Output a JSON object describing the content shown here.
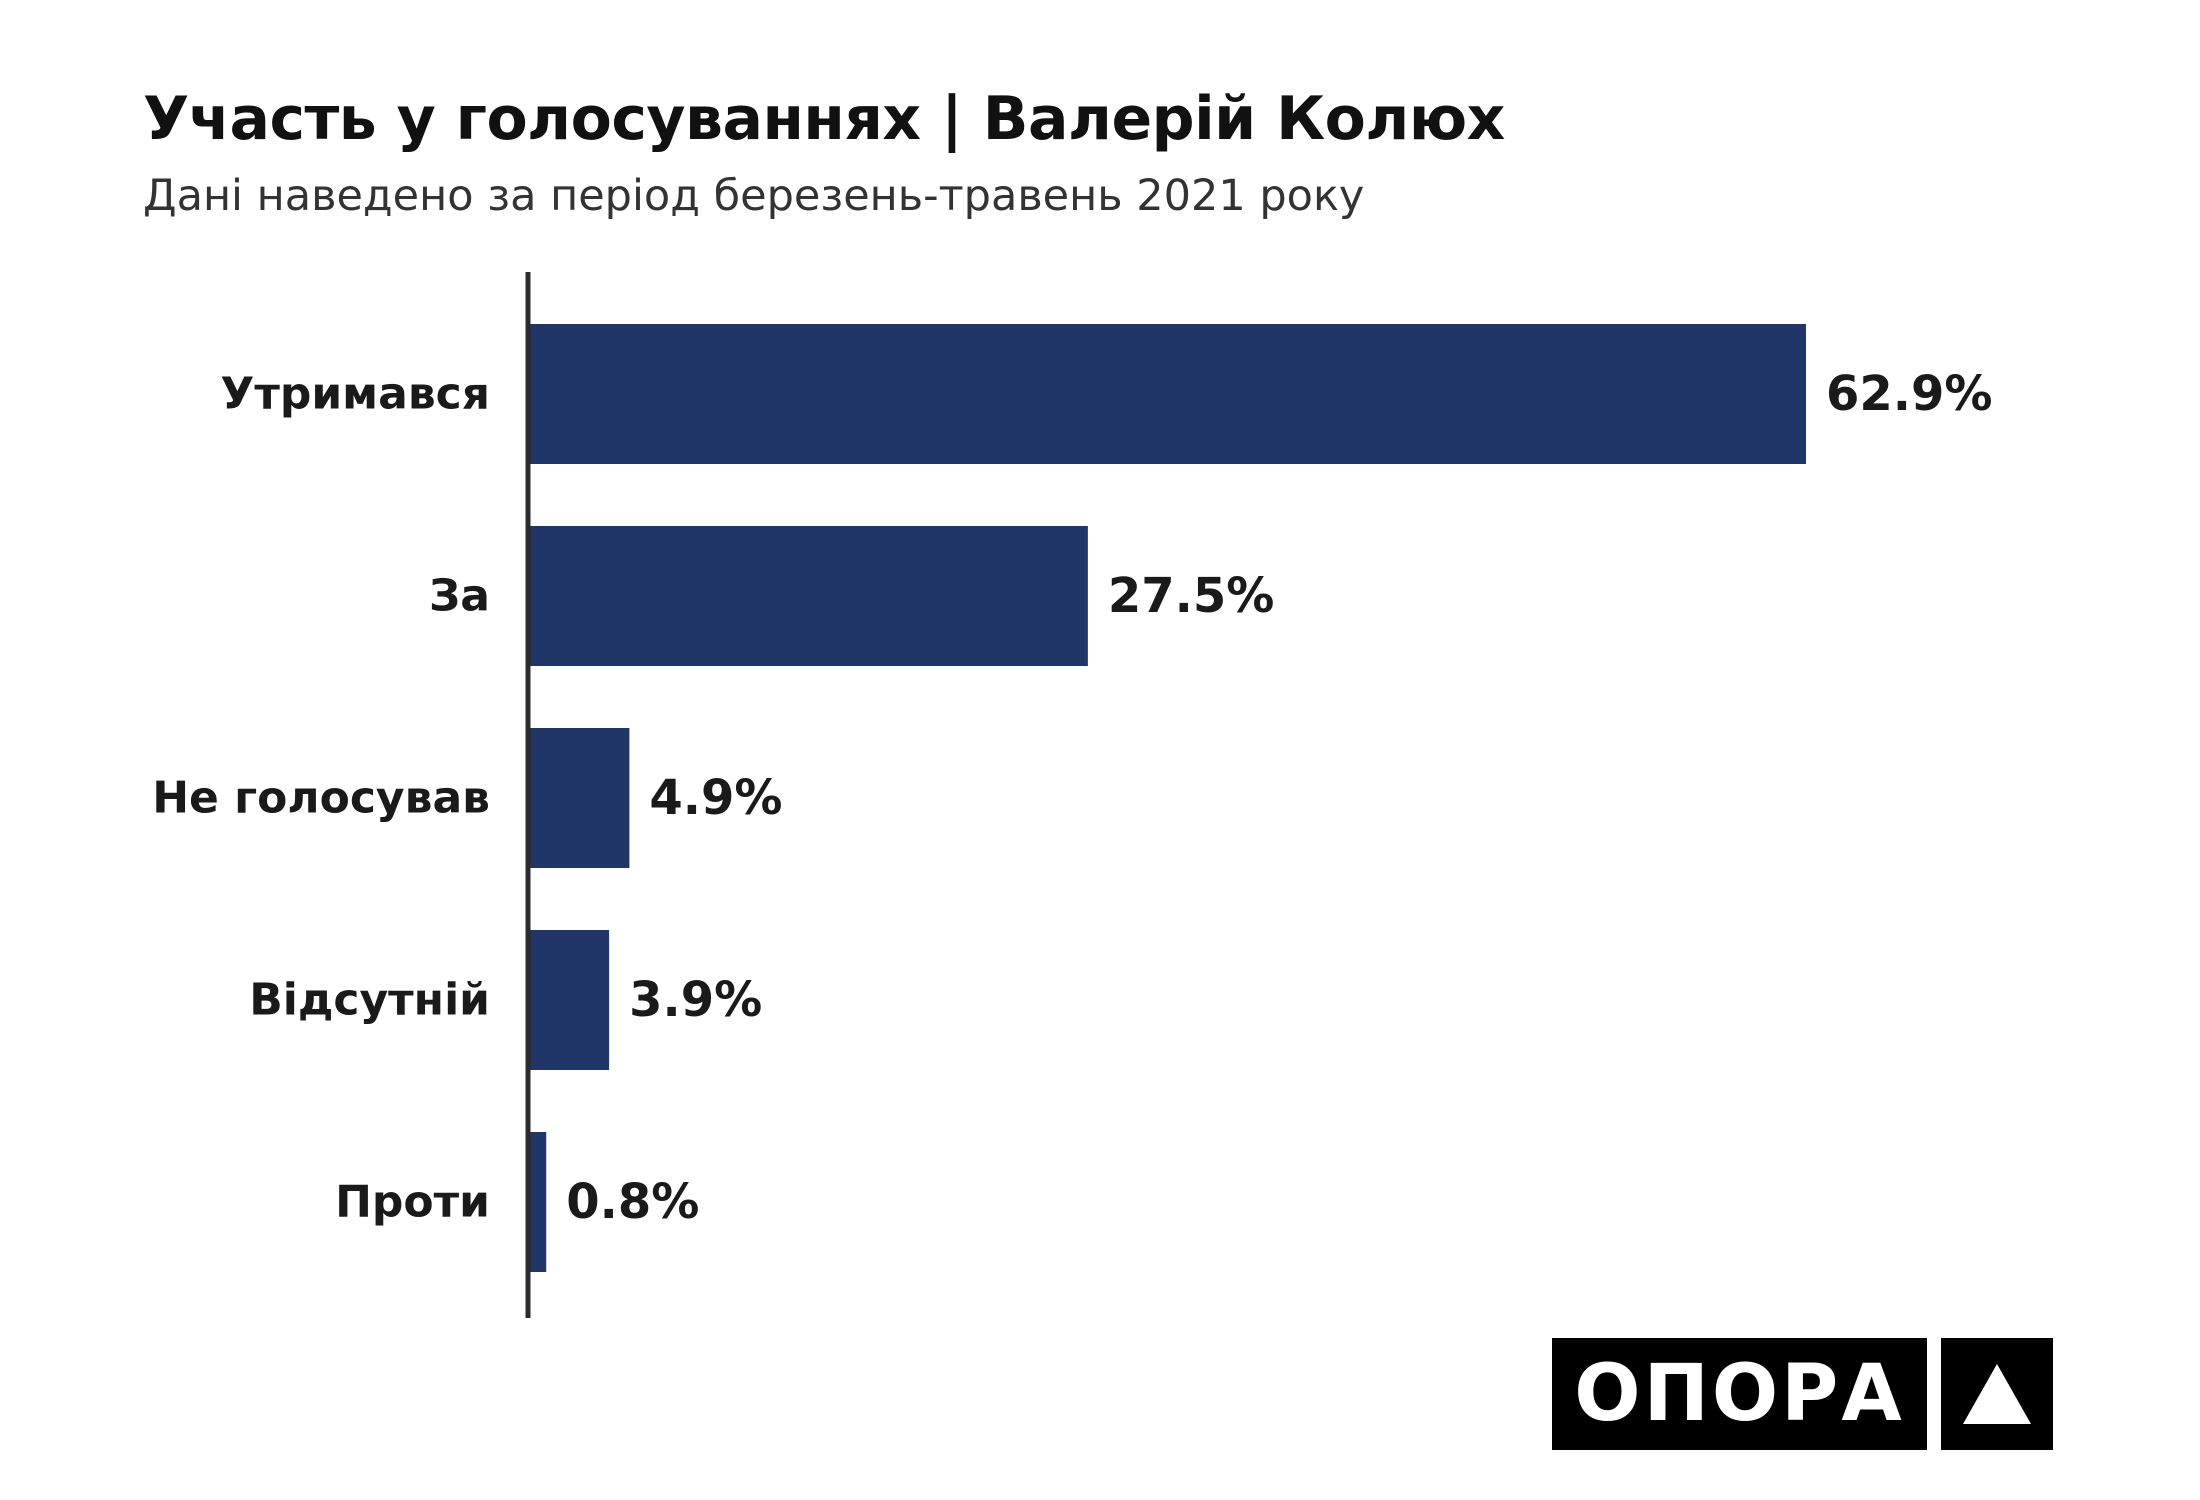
{
  "header": {
    "title": "Участь у голосуваннях | Валерій Колюх",
    "subtitle": "Дані наведено за період березень-травень 2021 року"
  },
  "chart_data": {
    "type": "bar",
    "orientation": "horizontal",
    "title": "Участь у голосуваннях | Валерій Колюх",
    "subtitle": "Дані наведено за період березень-травень 2021 року",
    "categories": [
      "Утримався",
      "За",
      "Не голосував",
      "Відсутній",
      "Проти"
    ],
    "values": [
      62.9,
      27.5,
      4.9,
      3.9,
      0.8
    ],
    "value_labels": [
      "62.9%",
      "27.5%",
      "4.9%",
      "3.9%",
      "0.8%"
    ],
    "xlabel": "",
    "ylabel": "",
    "xlim": [
      0,
      62.9
    ],
    "grid": false,
    "legend": "none",
    "bar_color": "#1f3666"
  },
  "logo": {
    "text": "ОПОРА",
    "icon": "triangle-icon"
  },
  "colors": {
    "bar": "#1f3666",
    "axis": "#2b2b2b",
    "logo_bg": "#000000",
    "logo_fg": "#ffffff"
  }
}
